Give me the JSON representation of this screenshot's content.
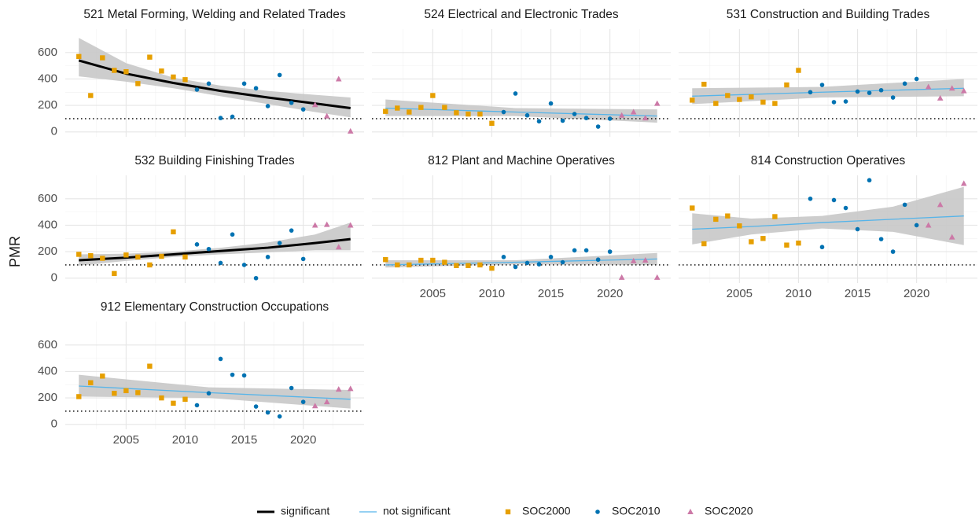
{
  "y_label": "PMR",
  "legend": [
    {
      "label": "significant",
      "kind": "line",
      "color": "#000000",
      "linewidth": 3
    },
    {
      "label": "not significant",
      "kind": "line",
      "color": "#56B4E9",
      "linewidth": 1.3
    },
    {
      "label": "SOC2000",
      "kind": "square",
      "color": "#E69F00"
    },
    {
      "label": "SOC2010",
      "kind": "circle",
      "color": "#0072B2"
    },
    {
      "label": "SOC2020",
      "kind": "triangle",
      "color": "#CC79A7"
    }
  ],
  "chart_data": [
    {
      "type": "scatter",
      "title": "521 Metal Forming, Welding and Related Trades",
      "xlim": [
        1999.85,
        2025.15
      ],
      "ylim": [
        -37,
        777
      ],
      "xticks": [
        2005,
        2010,
        2015,
        2020
      ],
      "yticks": [
        0,
        200,
        400,
        600
      ],
      "show_xticks": false,
      "show_yticks": true,
      "reference_line": 100,
      "grid": true,
      "series": [
        {
          "name": "SOC2000",
          "x": [
            2001,
            2002,
            2003,
            2004,
            2005,
            2006,
            2007,
            2008,
            2009,
            2010
          ],
          "values": [
            570,
            275,
            560,
            465,
            455,
            365,
            565,
            460,
            415,
            395
          ]
        },
        {
          "name": "SOC2010",
          "x": [
            2011,
            2012,
            2013,
            2014,
            2015,
            2016,
            2017,
            2018,
            2019,
            2020
          ],
          "values": [
            320,
            365,
            105,
            115,
            365,
            330,
            195,
            430,
            220,
            170
          ]
        },
        {
          "name": "SOC2020",
          "x": [
            2021,
            2022,
            2023,
            2024
          ],
          "values": [
            205,
            120,
            400,
            5
          ]
        }
      ],
      "fit": {
        "name": "significant",
        "x": [
          2001,
          2005,
          2009,
          2013,
          2017,
          2021,
          2024
        ],
        "values": [
          540,
          440,
          370,
          310,
          260,
          215,
          180
        ],
        "lower": [
          420,
          380,
          330,
          270,
          210,
          150,
          110
        ],
        "upper": [
          710,
          520,
          410,
          350,
          310,
          280,
          260
        ]
      }
    },
    {
      "type": "scatter",
      "title": "524 Electrical and Electronic Trades",
      "xlim": [
        1999.85,
        2025.15
      ],
      "ylim": [
        -37,
        777
      ],
      "xticks": [
        2005,
        2010,
        2015,
        2020
      ],
      "yticks": [
        0,
        200,
        400,
        600
      ],
      "show_xticks": false,
      "show_yticks": false,
      "reference_line": 100,
      "grid": true,
      "series": [
        {
          "name": "SOC2000",
          "x": [
            2001,
            2002,
            2003,
            2004,
            2005,
            2006,
            2007,
            2008,
            2009,
            2010
          ],
          "values": [
            155,
            180,
            150,
            185,
            275,
            185,
            145,
            135,
            135,
            65
          ]
        },
        {
          "name": "SOC2010",
          "x": [
            2011,
            2012,
            2013,
            2014,
            2015,
            2016,
            2017,
            2018,
            2019,
            2020
          ],
          "values": [
            150,
            290,
            125,
            80,
            215,
            85,
            135,
            105,
            40,
            100
          ]
        },
        {
          "name": "SOC2020",
          "x": [
            2021,
            2022,
            2023,
            2024
          ],
          "values": [
            125,
            150,
            105,
            215
          ]
        }
      ],
      "fit": {
        "name": "not significant",
        "x": [
          2001,
          2012,
          2024
        ],
        "values": [
          180,
          150,
          120
        ],
        "lower": [
          120,
          120,
          70
        ],
        "upper": [
          245,
          180,
          170
        ]
      }
    },
    {
      "type": "scatter",
      "title": "531 Construction and Building Trades",
      "xlim": [
        1999.85,
        2025.15
      ],
      "ylim": [
        -37,
        777
      ],
      "xticks": [
        2005,
        2010,
        2015,
        2020
      ],
      "yticks": [
        0,
        200,
        400,
        600
      ],
      "show_xticks": false,
      "show_yticks": false,
      "reference_line": 100,
      "grid": true,
      "series": [
        {
          "name": "SOC2000",
          "x": [
            2001,
            2002,
            2003,
            2004,
            2005,
            2006,
            2007,
            2008,
            2009,
            2010
          ],
          "values": [
            240,
            360,
            215,
            275,
            245,
            265,
            225,
            215,
            355,
            465
          ]
        },
        {
          "name": "SOC2010",
          "x": [
            2011,
            2012,
            2013,
            2014,
            2015,
            2016,
            2017,
            2018,
            2019,
            2020
          ],
          "values": [
            300,
            355,
            225,
            230,
            305,
            295,
            315,
            260,
            365,
            400
          ]
        },
        {
          "name": "SOC2020",
          "x": [
            2021,
            2022,
            2023,
            2024
          ],
          "values": [
            340,
            255,
            330,
            310
          ]
        }
      ],
      "fit": {
        "name": "not significant",
        "x": [
          2001,
          2012,
          2024
        ],
        "values": [
          270,
          300,
          330
        ],
        "lower": [
          210,
          260,
          270
        ],
        "upper": [
          330,
          340,
          400
        ]
      }
    },
    {
      "type": "scatter",
      "title": "532 Building Finishing Trades",
      "xlim": [
        1999.85,
        2025.15
      ],
      "ylim": [
        -37,
        777
      ],
      "xticks": [
        2005,
        2010,
        2015,
        2020
      ],
      "yticks": [
        0,
        200,
        400,
        600
      ],
      "show_xticks": false,
      "show_yticks": true,
      "reference_line": 100,
      "grid": true,
      "series": [
        {
          "name": "SOC2000",
          "x": [
            2001,
            2002,
            2003,
            2004,
            2005,
            2006,
            2007,
            2008,
            2009,
            2010
          ],
          "values": [
            180,
            170,
            150,
            35,
            175,
            160,
            100,
            165,
            350,
            160
          ]
        },
        {
          "name": "SOC2010",
          "x": [
            2011,
            2012,
            2013,
            2014,
            2015,
            2016,
            2017,
            2018,
            2019,
            2020
          ],
          "values": [
            255,
            220,
            115,
            330,
            100,
            0,
            160,
            265,
            360,
            145
          ]
        },
        {
          "name": "SOC2020",
          "x": [
            2021,
            2022,
            2023,
            2024
          ],
          "values": [
            400,
            405,
            235,
            400
          ]
        }
      ],
      "fit": {
        "name": "significant",
        "x": [
          2001,
          2005,
          2009,
          2013,
          2017,
          2021,
          2024
        ],
        "values": [
          135,
          155,
          180,
          205,
          230,
          265,
          295
        ],
        "lower": [
          95,
          130,
          160,
          180,
          195,
          210,
          210
        ],
        "upper": [
          180,
          185,
          200,
          230,
          270,
          330,
          420
        ]
      }
    },
    {
      "type": "scatter",
      "title": "812 Plant and Machine Operatives",
      "xlim": [
        1999.85,
        2025.15
      ],
      "ylim": [
        -37,
        777
      ],
      "xticks": [
        2005,
        2010,
        2015,
        2020
      ],
      "yticks": [
        0,
        200,
        400,
        600
      ],
      "show_xticks": true,
      "show_yticks": false,
      "reference_line": 100,
      "grid": true,
      "series": [
        {
          "name": "SOC2000",
          "x": [
            2001,
            2002,
            2003,
            2004,
            2005,
            2006,
            2007,
            2008,
            2009,
            2010
          ],
          "values": [
            140,
            100,
            100,
            135,
            135,
            120,
            95,
            95,
            100,
            75
          ]
        },
        {
          "name": "SOC2010",
          "x": [
            2011,
            2012,
            2013,
            2014,
            2015,
            2016,
            2017,
            2018,
            2019,
            2020
          ],
          "values": [
            160,
            85,
            115,
            105,
            160,
            120,
            210,
            210,
            140,
            200
          ]
        },
        {
          "name": "SOC2020",
          "x": [
            2021,
            2022,
            2023,
            2024
          ],
          "values": [
            5,
            130,
            135,
            5
          ]
        }
      ],
      "fit": {
        "name": "not significant",
        "x": [
          2001,
          2012,
          2024
        ],
        "values": [
          100,
          120,
          145
        ],
        "lower": [
          80,
          105,
          100
        ],
        "upper": [
          135,
          135,
          190
        ]
      }
    },
    {
      "type": "scatter",
      "title": "814 Construction Operatives",
      "xlim": [
        1999.85,
        2025.15
      ],
      "ylim": [
        -37,
        777
      ],
      "xticks": [
        2005,
        2010,
        2015,
        2020
      ],
      "yticks": [
        0,
        200,
        400,
        600
      ],
      "show_xticks": true,
      "show_yticks": false,
      "reference_line": 100,
      "grid": true,
      "series": [
        {
          "name": "SOC2000",
          "x": [
            2001,
            2002,
            2003,
            2004,
            2005,
            2006,
            2007,
            2008,
            2009,
            2010
          ],
          "values": [
            530,
            260,
            445,
            470,
            395,
            275,
            300,
            465,
            250,
            265
          ]
        },
        {
          "name": "SOC2010",
          "x": [
            2011,
            2012,
            2013,
            2014,
            2015,
            2016,
            2017,
            2018,
            2019,
            2020
          ],
          "values": [
            600,
            235,
            590,
            530,
            370,
            740,
            295,
            200,
            555,
            400
          ]
        },
        {
          "name": "SOC2020",
          "x": [
            2021,
            2022,
            2023,
            2024
          ],
          "values": [
            400,
            555,
            310,
            715
          ]
        }
      ],
      "fit": {
        "name": "not significant",
        "x": [
          2001,
          2006,
          2012,
          2018,
          2024
        ],
        "values": [
          370,
          390,
          420,
          445,
          470
        ],
        "lower": [
          255,
          330,
          375,
          350,
          250
        ],
        "upper": [
          490,
          450,
          470,
          540,
          690
        ]
      }
    },
    {
      "type": "scatter",
      "title": "912 Elementary Construction Occupations",
      "xlim": [
        1999.85,
        2025.15
      ],
      "ylim": [
        -37,
        777
      ],
      "xticks": [
        2005,
        2010,
        2015,
        2020
      ],
      "yticks": [
        0,
        200,
        400,
        600
      ],
      "show_xticks": true,
      "show_yticks": true,
      "reference_line": 100,
      "grid": true,
      "series": [
        {
          "name": "SOC2000",
          "x": [
            2001,
            2002,
            2003,
            2004,
            2005,
            2006,
            2007,
            2008,
            2009,
            2010
          ],
          "values": [
            210,
            315,
            365,
            235,
            255,
            240,
            440,
            200,
            160,
            190
          ]
        },
        {
          "name": "SOC2010",
          "x": [
            2011,
            2012,
            2013,
            2014,
            2015,
            2016,
            2017,
            2018,
            2019,
            2020
          ],
          "values": [
            145,
            235,
            495,
            375,
            370,
            135,
            90,
            60,
            275,
            170
          ]
        },
        {
          "name": "SOC2020",
          "x": [
            2021,
            2022,
            2023,
            2024
          ],
          "values": [
            140,
            170,
            265,
            270
          ]
        }
      ],
      "fit": {
        "name": "not significant",
        "x": [
          2001,
          2012,
          2024
        ],
        "values": [
          290,
          240,
          190
        ],
        "lower": [
          210,
          200,
          120
        ],
        "upper": [
          375,
          280,
          260
        ]
      }
    }
  ]
}
